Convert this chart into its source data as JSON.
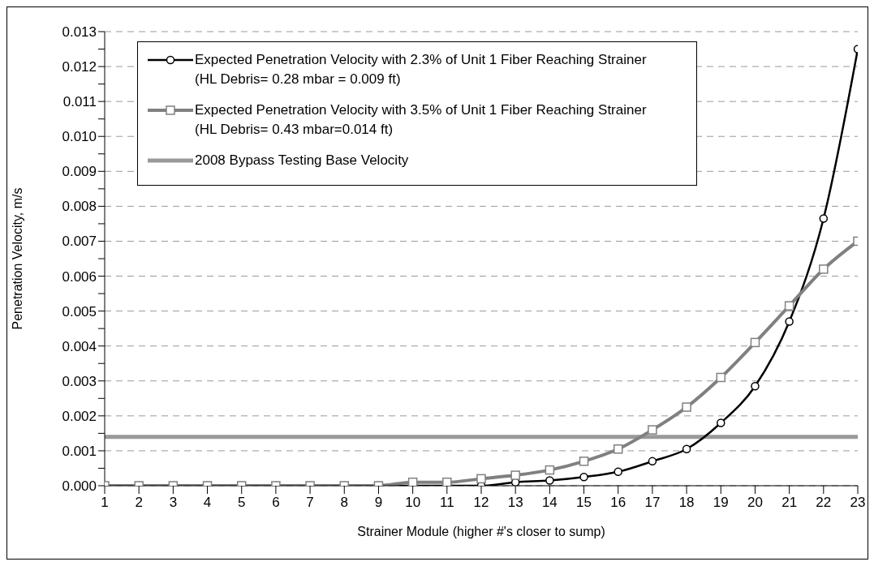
{
  "chart_data": {
    "type": "line",
    "xlabel": "Strainer Module (higher #'s closer to sump)",
    "ylabel": "Penetration Velocity, m/s",
    "x": [
      1,
      2,
      3,
      4,
      5,
      6,
      7,
      8,
      9,
      10,
      11,
      12,
      13,
      14,
      15,
      16,
      17,
      18,
      19,
      20,
      21,
      22,
      23
    ],
    "series": [
      {
        "name": "Expected Penetration Velocity with 2.3% of Unit 1 Fiber Reaching Strainer (HL Debris= 0.28 mbar = 0.009 ft)",
        "color": "#000000",
        "marker": "circle",
        "values": [
          0,
          0,
          0,
          0,
          0,
          0,
          0,
          0,
          0,
          0,
          0,
          0,
          0.0001,
          0.00015,
          0.00025,
          0.0004,
          0.0007,
          0.00105,
          0.0018,
          0.00285,
          0.0047,
          0.00765,
          0.0125
        ]
      },
      {
        "name": "Expected Penetration Velocity with 3.5% of Unit 1 Fiber Reaching Strainer  (HL Debris= 0.43 mbar=0.014 ft)",
        "color": "#808080",
        "marker": "square",
        "values": [
          0,
          0,
          0,
          0,
          0,
          0,
          0,
          0,
          0,
          0.0001,
          0.0001,
          0.0002,
          0.0003,
          0.00045,
          0.0007,
          0.00105,
          0.0016,
          0.00225,
          0.0031,
          0.0041,
          0.00515,
          0.0062,
          0.007
        ]
      }
    ],
    "ref_lines": [
      {
        "axis": "y",
        "value": 0.0014,
        "label": "2008 Bypass Testing Base Velocity",
        "color": "#999999"
      }
    ],
    "xlim": [
      1,
      23
    ],
    "xticks": [
      1,
      2,
      3,
      4,
      5,
      6,
      7,
      8,
      9,
      10,
      11,
      12,
      13,
      14,
      15,
      16,
      17,
      18,
      19,
      20,
      21,
      22,
      23
    ],
    "ylim": [
      0,
      0.013
    ],
    "yticks": [
      {
        "value": 0,
        "label": "0.000"
      },
      {
        "value": 0.0005,
        "label": null
      },
      {
        "value": 0.001,
        "label": "0.001"
      },
      {
        "value": 0.0015,
        "label": null
      },
      {
        "value": 0.002,
        "label": "0.002"
      },
      {
        "value": 0.0025,
        "label": null
      },
      {
        "value": 0.003,
        "label": "0.003"
      },
      {
        "value": 0.0035,
        "label": null
      },
      {
        "value": 0.004,
        "label": "0.004"
      },
      {
        "value": 0.0045,
        "label": null
      },
      {
        "value": 0.005,
        "label": "0.005"
      },
      {
        "value": 0.0055,
        "label": null
      },
      {
        "value": 0.006,
        "label": "0.006"
      },
      {
        "value": 0.0065,
        "label": null
      },
      {
        "value": 0.007,
        "label": "0.007"
      },
      {
        "value": 0.0075,
        "label": null
      },
      {
        "value": 0.008,
        "label": "0.008"
      },
      {
        "value": 0.0085,
        "label": null
      },
      {
        "value": 0.009,
        "label": "0.009"
      },
      {
        "value": 0.0095,
        "label": null
      },
      {
        "value": 0.01,
        "label": "0.010"
      },
      {
        "value": 0.0105,
        "label": null
      },
      {
        "value": 0.011,
        "label": "0.011"
      },
      {
        "value": 0.0115,
        "label": null
      },
      {
        "value": 0.012,
        "label": "0.012"
      },
      {
        "value": 0.0125,
        "label": null
      },
      {
        "value": 0.013,
        "label": "0.013"
      }
    ],
    "grid": "y",
    "legend": "top left",
    "line_style": "solid"
  }
}
